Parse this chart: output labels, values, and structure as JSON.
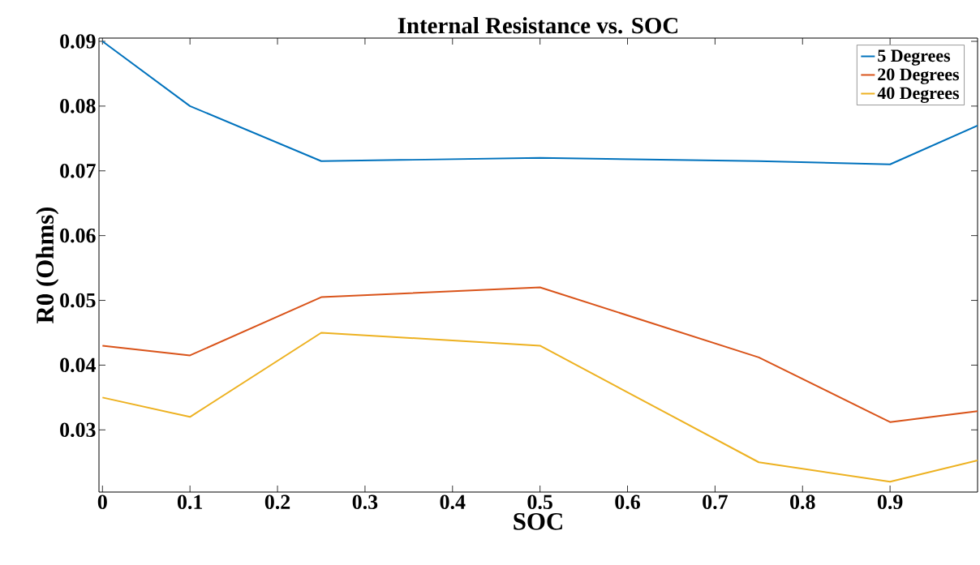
{
  "chart_data": {
    "type": "line",
    "title": "Internal Resistance vs. SOC",
    "xlabel": "SOC",
    "ylabel": "R0 (Ohms)",
    "x": [
      0,
      0.1,
      0.25,
      0.5,
      0.75,
      0.9,
      1.0
    ],
    "series": [
      {
        "name": "5 Degrees",
        "color": "#0072bd",
        "values": [
          0.09,
          0.08,
          0.0715,
          0.072,
          0.0715,
          0.071,
          0.077
        ]
      },
      {
        "name": "20 Degrees",
        "color": "#d95319",
        "values": [
          0.043,
          0.0415,
          0.0505,
          0.052,
          0.0412,
          0.0312,
          0.0329
        ]
      },
      {
        "name": "40 Degrees",
        "color": "#edb120",
        "values": [
          0.035,
          0.032,
          0.045,
          0.043,
          0.025,
          0.022,
          0.0253
        ]
      }
    ],
    "xlim": [
      -0.004,
      1.0
    ],
    "ylim": [
      0.0204,
      0.0905
    ],
    "xticks": [
      0,
      0.1,
      0.2,
      0.3,
      0.4,
      0.5,
      0.6,
      0.7,
      0.8,
      0.9
    ],
    "yticks": [
      0.03,
      0.04,
      0.05,
      0.06,
      0.07,
      0.08,
      0.09
    ],
    "grid": false,
    "legend": "top right",
    "marker": "none",
    "line_style": "solid"
  }
}
